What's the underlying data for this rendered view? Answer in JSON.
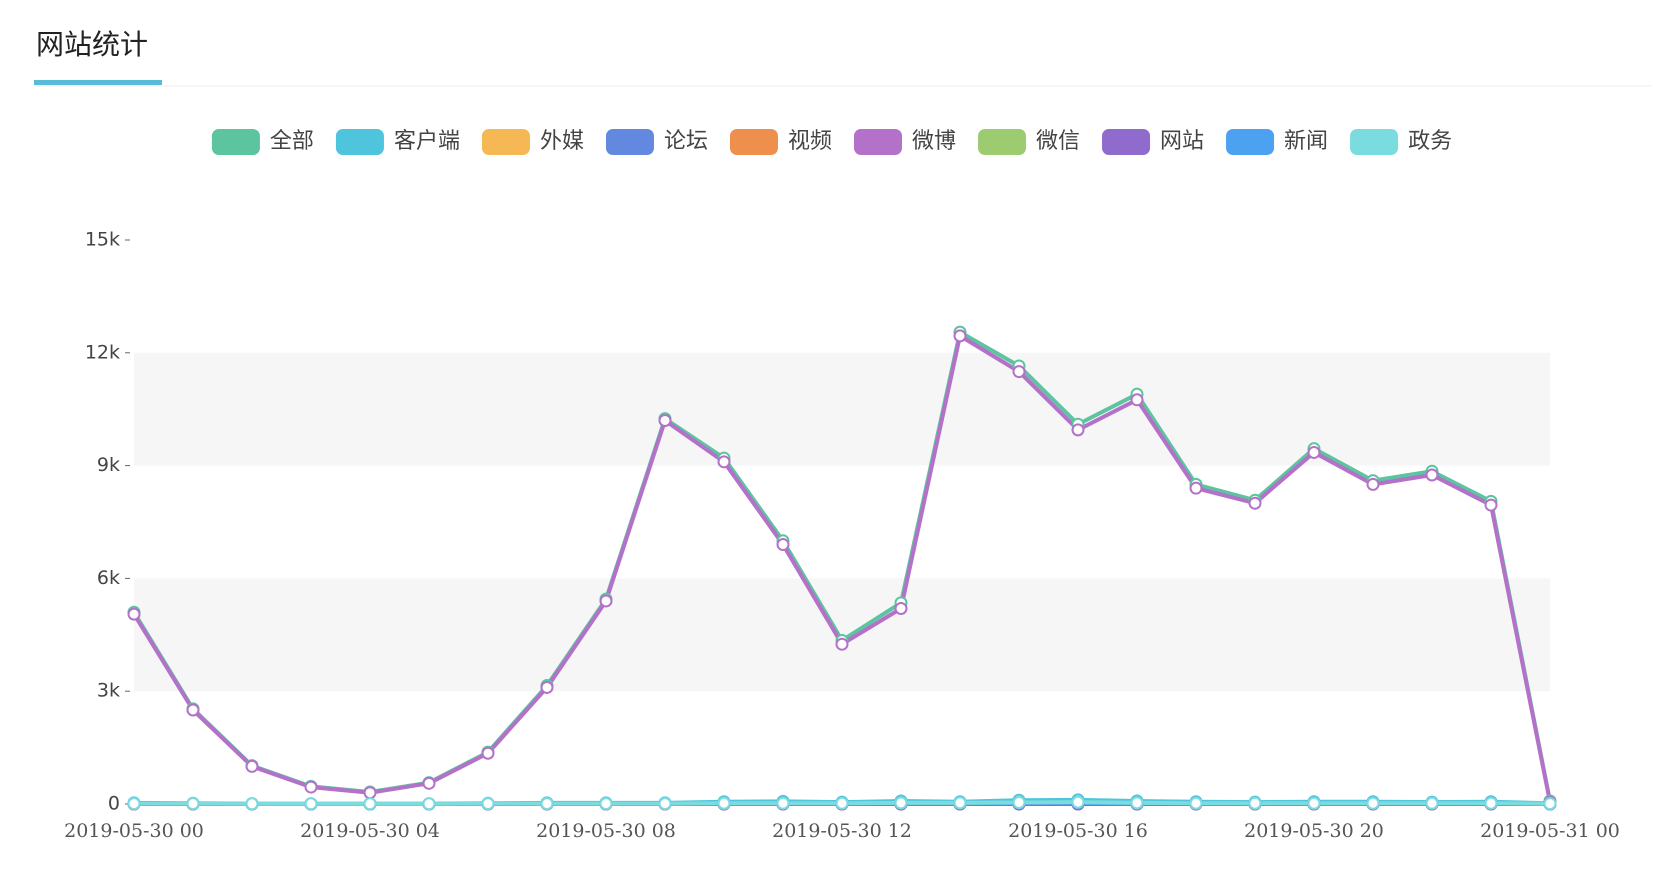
{
  "header": {
    "title": "网站统计"
  },
  "chart_data": {
    "type": "line",
    "categories": [
      "2019-05-30 00",
      null,
      null,
      null,
      "2019-05-30 04",
      null,
      null,
      null,
      "2019-05-30 08",
      null,
      null,
      null,
      "2019-05-30 12",
      null,
      null,
      null,
      "2019-05-30 16",
      null,
      null,
      null,
      "2019-05-30 20",
      null,
      null,
      null,
      "2019-05-31 00"
    ],
    "ylim": [
      0,
      15000
    ],
    "yticks": [
      0,
      {
        "value": 3000,
        "label": "3k"
      },
      {
        "value": 6000,
        "label": "6k"
      },
      {
        "value": 9000,
        "label": "9k"
      },
      {
        "value": 12000,
        "label": "12k"
      },
      {
        "value": 15000,
        "label": "15k"
      }
    ],
    "legend": "top",
    "series": [
      {
        "name": "全部",
        "color": "#5cc49e",
        "values": [
          5100,
          2530,
          1020,
          470,
          320,
          570,
          1380,
          3150,
          5450,
          10250,
          9200,
          7000,
          4350,
          5350,
          12550,
          11650,
          10100,
          10900,
          8500,
          8080,
          9450,
          8600,
          8850,
          8050,
          80
        ]
      },
      {
        "name": "客户端",
        "color": "#4ec5dc",
        "values": [
          30,
          20,
          10,
          10,
          10,
          10,
          20,
          30,
          30,
          30,
          60,
          70,
          50,
          80,
          60,
          100,
          110,
          80,
          60,
          50,
          60,
          60,
          50,
          60,
          20
        ]
      },
      {
        "name": "外媒",
        "color": "#f6b855",
        "values": [
          0,
          0,
          0,
          0,
          0,
          0,
          0,
          0,
          0,
          0,
          0,
          0,
          0,
          0,
          0,
          0,
          0,
          0,
          0,
          0,
          0,
          0,
          0,
          0,
          0
        ]
      },
      {
        "name": "论坛",
        "color": "#6388e0",
        "values": [
          0,
          0,
          0,
          0,
          0,
          0,
          0,
          0,
          0,
          0,
          0,
          0,
          0,
          0,
          0,
          0,
          0,
          0,
          0,
          0,
          0,
          0,
          0,
          0,
          0
        ]
      },
      {
        "name": "视频",
        "color": "#ef8f4e",
        "values": [
          0,
          0,
          0,
          0,
          0,
          0,
          0,
          0,
          0,
          0,
          0,
          0,
          0,
          0,
          0,
          0,
          0,
          0,
          0,
          0,
          0,
          0,
          0,
          0,
          0
        ]
      },
      {
        "name": "微博",
        "color": "#b371c9",
        "values": [
          5050,
          2500,
          1000,
          450,
          300,
          550,
          1350,
          3100,
          5400,
          10200,
          9100,
          6900,
          4250,
          5200,
          12450,
          11500,
          9950,
          10750,
          8400,
          8000,
          9350,
          8500,
          8750,
          7950,
          50
        ]
      },
      {
        "name": "微信",
        "color": "#9ccb70",
        "values": [
          0,
          0,
          0,
          0,
          0,
          0,
          0,
          0,
          0,
          0,
          0,
          0,
          0,
          0,
          0,
          0,
          0,
          0,
          0,
          0,
          0,
          0,
          0,
          0,
          0
        ]
      },
      {
        "name": "网站",
        "color": "#8e6bcd",
        "values": [
          0,
          0,
          0,
          0,
          0,
          0,
          0,
          0,
          0,
          0,
          0,
          0,
          0,
          0,
          0,
          0,
          0,
          0,
          0,
          0,
          0,
          0,
          0,
          0,
          0
        ]
      },
      {
        "name": "新闻",
        "color": "#4da1f1",
        "values": [
          10,
          10,
          0,
          0,
          0,
          0,
          10,
          10,
          10,
          10,
          10,
          20,
          20,
          20,
          20,
          30,
          30,
          20,
          20,
          10,
          20,
          20,
          20,
          20,
          0
        ]
      },
      {
        "name": "政务",
        "color": "#7bdcdf",
        "values": [
          10,
          10,
          5,
          5,
          5,
          5,
          10,
          10,
          10,
          10,
          20,
          20,
          20,
          30,
          30,
          40,
          50,
          30,
          20,
          20,
          20,
          20,
          20,
          20,
          10
        ]
      }
    ]
  }
}
